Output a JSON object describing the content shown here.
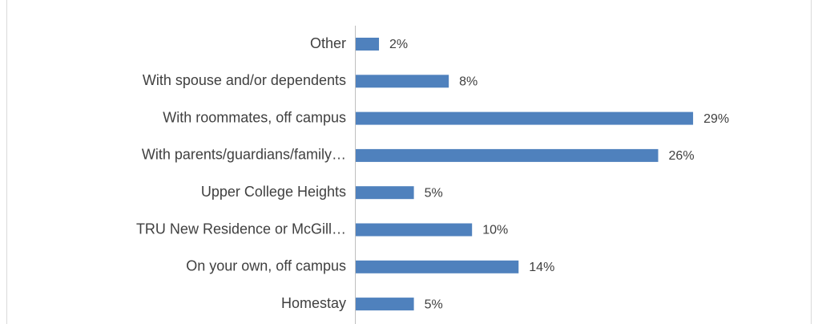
{
  "chart_data": {
    "type": "bar",
    "orientation": "horizontal",
    "categories": [
      "Other",
      "With spouse and/or dependents",
      "With roommates, off campus",
      "With parents/guardians/family…",
      "Upper College Heights",
      "TRU New Residence or McGill…",
      "On your own, off campus",
      "Homestay"
    ],
    "values": [
      2,
      8,
      29,
      26,
      5,
      10,
      14,
      5
    ],
    "value_labels": [
      "2%",
      "8%",
      "29%",
      "26%",
      "5%",
      "10%",
      "14%",
      "5%"
    ],
    "color": "#4f81bd"
  }
}
